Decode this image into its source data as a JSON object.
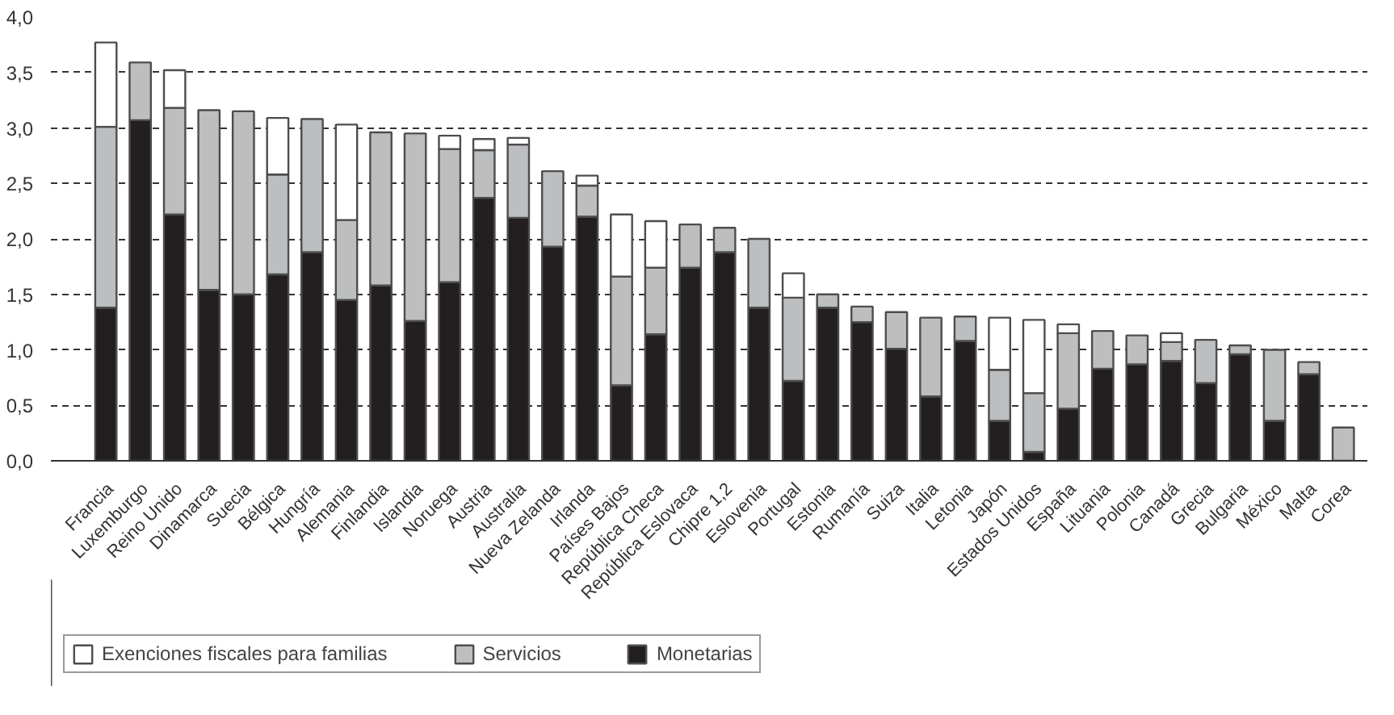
{
  "chart_data": {
    "type": "bar",
    "stacked": true,
    "categories": [
      "Francia",
      "Luxemburgo",
      "Reino Unido",
      "Dinamarca",
      "Suecia",
      "Bélgica",
      "Hungría",
      "Alemania",
      "Finlandia",
      "Islandia",
      "Noruega",
      "Austria",
      "Australia",
      "Nueva Zelanda",
      "Irlanda",
      "Países Bajos",
      "República Checa",
      "República Eslovaca",
      "Chipre 1,2",
      "Eslovenia",
      "Portugal",
      "Estonia",
      "Rumanía",
      "Suiza",
      "Italia",
      "Letonia",
      "Japón",
      "Estados Unidos",
      "España",
      "Lituania",
      "Polonia",
      "Canadá",
      "Grecia",
      "Bulgaria",
      "México",
      "Malta",
      "Corea"
    ],
    "series": [
      {
        "name": "Monetarias",
        "color": "#231f20",
        "values": [
          1.38,
          3.07,
          2.22,
          1.54,
          1.5,
          1.68,
          1.88,
          1.45,
          1.58,
          1.26,
          1.61,
          2.37,
          2.19,
          1.93,
          2.2,
          0.68,
          1.14,
          1.74,
          1.88,
          1.38,
          0.72,
          1.38,
          1.25,
          1.01,
          0.58,
          1.08,
          0.36,
          0.08,
          0.47,
          0.83,
          0.87,
          0.9,
          0.7,
          0.96,
          0.36,
          0.78,
          null
        ]
      },
      {
        "name": "Servicios",
        "color": "#bcbec0",
        "values": [
          1.63,
          0.52,
          0.96,
          1.62,
          1.65,
          0.9,
          1.2,
          0.72,
          1.38,
          1.69,
          1.2,
          0.43,
          0.66,
          0.68,
          0.28,
          0.98,
          0.6,
          0.39,
          0.22,
          0.62,
          0.75,
          0.12,
          0.14,
          0.33,
          0.71,
          0.22,
          0.46,
          0.53,
          0.68,
          0.34,
          0.26,
          0.17,
          0.39,
          0.08,
          0.64,
          0.11,
          0.3
        ]
      },
      {
        "name": "Exenciones fiscales para familias",
        "color": "#ffffff",
        "values": [
          0.76,
          null,
          0.34,
          null,
          null,
          0.51,
          null,
          0.86,
          null,
          null,
          0.12,
          0.1,
          0.06,
          null,
          0.09,
          0.56,
          0.42,
          null,
          null,
          null,
          0.22,
          null,
          null,
          null,
          null,
          null,
          0.47,
          0.66,
          0.08,
          null,
          null,
          0.08,
          null,
          null,
          null,
          null,
          null
        ]
      }
    ],
    "ylim": [
      0,
      4.0
    ],
    "yticks": [
      {
        "value": 0,
        "label": "0,0"
      },
      {
        "value": 0.5,
        "label": "0,5"
      },
      {
        "value": 1,
        "label": "1,0"
      },
      {
        "value": 1.5,
        "label": "1,5"
      },
      {
        "value": 2,
        "label": "2,0"
      },
      {
        "value": 2.5,
        "label": "2,5"
      },
      {
        "value": 3,
        "label": "3,0"
      },
      {
        "value": 3.5,
        "label": "3,5"
      },
      {
        "value": 4,
        "label": "4,0"
      }
    ],
    "grid": "y",
    "legend": "bottom"
  }
}
